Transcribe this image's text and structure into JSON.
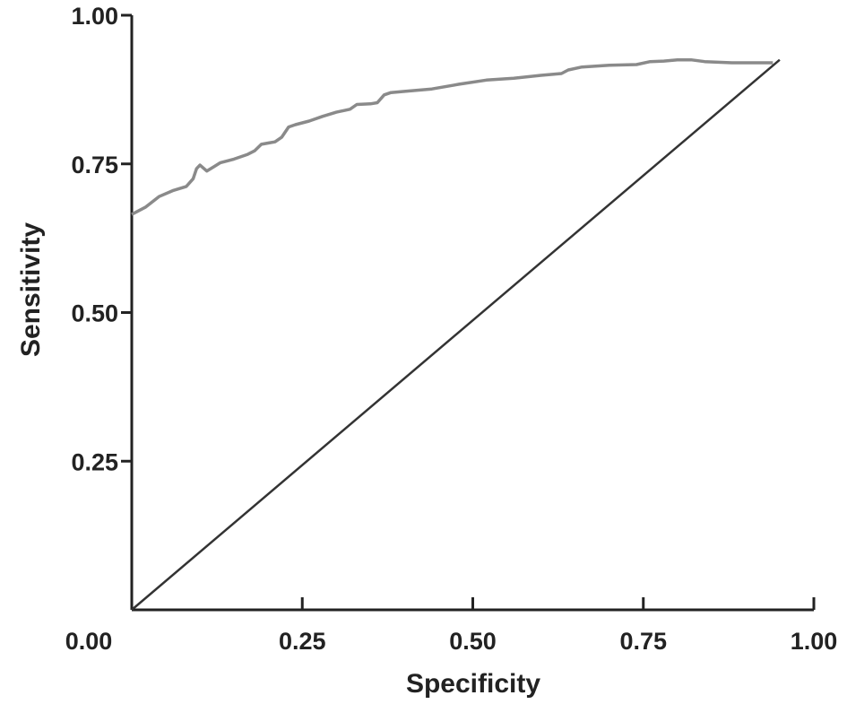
{
  "chart_data": {
    "type": "line",
    "title": "",
    "xlabel": "Specificity",
    "ylabel": "Sensitivity",
    "xlim": [
      0,
      1
    ],
    "ylim": [
      0,
      1
    ],
    "x_ticks": [
      "0.00",
      "0.25",
      "0.50",
      "0.75",
      "1.00"
    ],
    "y_ticks": [
      "0.00",
      "0.25",
      "0.50",
      "0.75",
      "1.00"
    ],
    "grid": false,
    "legend": "none",
    "colors": {
      "curve": "#8a8a8a",
      "reference": "#333333",
      "axis": "#222222"
    },
    "series": [
      {
        "x": [
          0.0,
          0.02,
          0.04,
          0.06,
          0.08,
          0.09,
          0.095,
          0.1,
          0.11,
          0.12,
          0.13,
          0.14,
          0.15,
          0.17,
          0.18,
          0.19,
          0.2,
          0.21,
          0.22,
          0.23,
          0.24,
          0.26,
          0.28,
          0.3,
          0.32,
          0.33,
          0.35,
          0.36,
          0.37,
          0.38,
          0.4,
          0.44,
          0.48,
          0.52,
          0.56,
          0.6,
          0.63,
          0.64,
          0.66,
          0.7,
          0.74,
          0.76,
          0.78,
          0.8,
          0.82,
          0.84,
          0.88,
          0.92,
          0.94
        ],
        "values": [
          0.665,
          0.677,
          0.695,
          0.705,
          0.712,
          0.725,
          0.742,
          0.748,
          0.738,
          0.745,
          0.752,
          0.755,
          0.758,
          0.766,
          0.772,
          0.783,
          0.785,
          0.787,
          0.795,
          0.812,
          0.816,
          0.822,
          0.83,
          0.837,
          0.842,
          0.85,
          0.851,
          0.853,
          0.866,
          0.87,
          0.872,
          0.876,
          0.884,
          0.891,
          0.894,
          0.899,
          0.902,
          0.908,
          0.913,
          0.916,
          0.917,
          0.922,
          0.923,
          0.925,
          0.925,
          0.922,
          0.92,
          0.92,
          0.92
        ]
      },
      {
        "x": [
          0.0,
          0.95
        ],
        "values": [
          0.0,
          0.925
        ]
      }
    ]
  }
}
